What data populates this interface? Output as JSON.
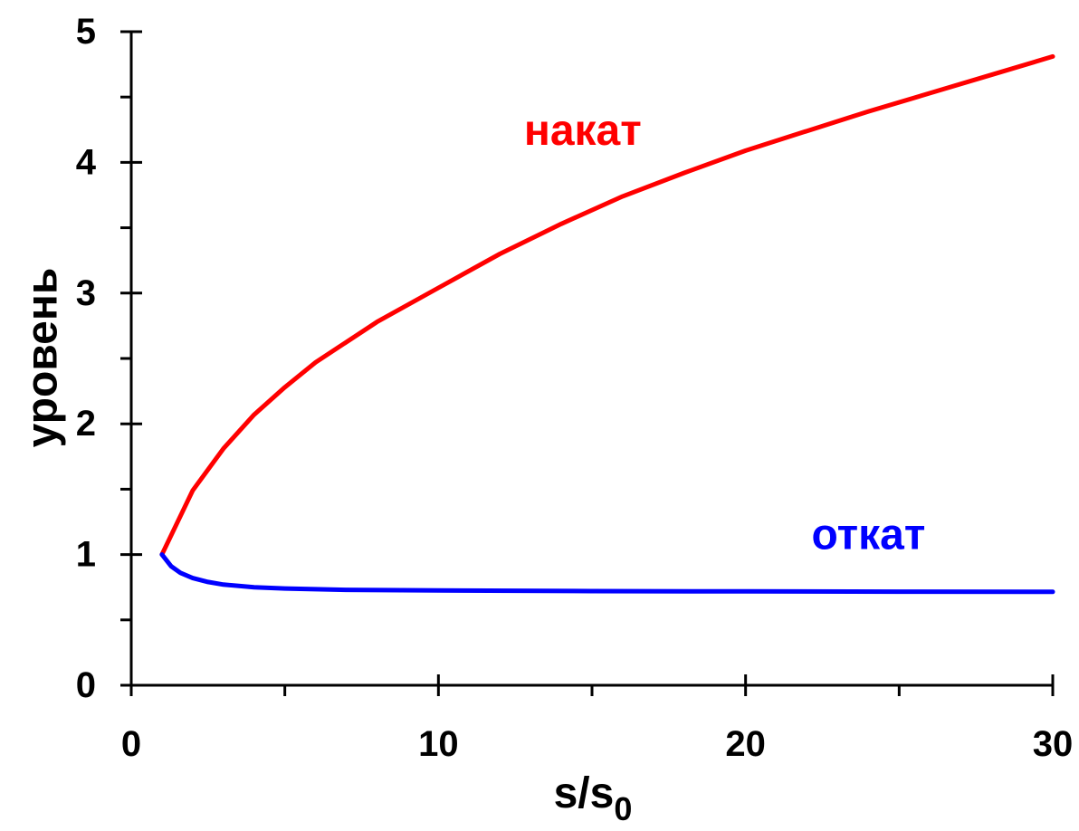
{
  "chart_data": {
    "type": "line",
    "xlabel": "s/s",
    "xlabel_subscript": "0",
    "ylabel": "уровень",
    "xlim": [
      0,
      30
    ],
    "ylim": [
      0,
      5
    ],
    "x_ticks": [
      0,
      10,
      20,
      30
    ],
    "x_tick_labels": [
      "0",
      "10",
      "20",
      "30"
    ],
    "x_minor_ticks": [
      5,
      15,
      25
    ],
    "y_ticks": [
      0,
      1,
      2,
      3,
      4,
      5
    ],
    "y_tick_labels": [
      "0",
      "1",
      "2",
      "3",
      "4",
      "5"
    ],
    "y_minor_ticks": [
      0.5,
      1.5,
      2.5,
      3.5,
      4.5
    ],
    "grid": false,
    "legend": "none",
    "series": [
      {
        "name": "накат",
        "color": "#ff0000",
        "x": [
          1,
          2,
          3,
          4,
          5,
          6,
          8,
          10,
          12,
          14,
          16,
          18,
          20,
          22,
          24,
          26,
          28,
          30
        ],
        "y": [
          1.0,
          1.49,
          1.81,
          2.07,
          2.28,
          2.47,
          2.78,
          3.04,
          3.3,
          3.53,
          3.74,
          3.92,
          4.09,
          4.24,
          4.39,
          4.53,
          4.67,
          4.81
        ]
      },
      {
        "name": "откат",
        "color": "#0000ff",
        "x": [
          1,
          1.3,
          1.6,
          2,
          2.5,
          3,
          4,
          5,
          7,
          10,
          15,
          20,
          25,
          30
        ],
        "y": [
          1.0,
          0.91,
          0.86,
          0.82,
          0.79,
          0.77,
          0.75,
          0.74,
          0.73,
          0.725,
          0.72,
          0.718,
          0.716,
          0.715
        ]
      }
    ],
    "annotations": [
      {
        "text": "накат",
        "x": 14.7,
        "y": 4.24,
        "color": "#ff0000"
      },
      {
        "text": "откат",
        "x": 24,
        "y": 1.15,
        "color": "#0000ff"
      }
    ]
  }
}
